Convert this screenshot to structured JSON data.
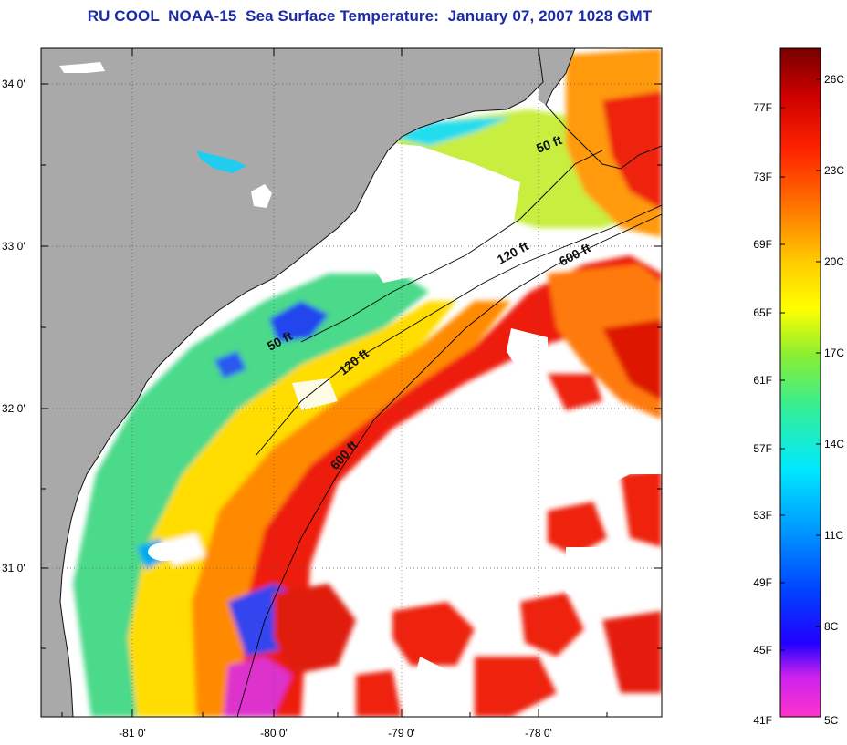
{
  "title": "RU COOL  NOAA-15  Sea Surface Temperature:  January 07, 2007 1028 GMT",
  "map": {
    "lat_ticks": [
      "34 0'",
      "33 0'",
      "32 0'",
      "31 0'"
    ],
    "lon_ticks": [
      "-81 0'",
      "-80 0'",
      "-79 0'",
      "-78 0'"
    ],
    "isobaths": [
      {
        "label": "50 ft",
        "name": "isobath-50ft-north"
      },
      {
        "label": "120 ft",
        "name": "isobath-120ft-north"
      },
      {
        "label": "600 ft",
        "name": "isobath-600ft-north"
      },
      {
        "label": "50 ft",
        "name": "isobath-50ft-south"
      },
      {
        "label": "120 ft",
        "name": "isobath-120ft-south"
      },
      {
        "label": "600 ft",
        "name": "isobath-600ft-south"
      }
    ],
    "colors": {
      "land": "#a9a9a9",
      "cloud": "#ffffff",
      "warm": "#e8140a",
      "cold": "#1030ff"
    }
  },
  "colorbar": {
    "fahrenheit": [
      "77F",
      "73F",
      "69F",
      "65F",
      "61F",
      "57F",
      "53F",
      "49F",
      "45F",
      "41F"
    ],
    "celsius": [
      "26C",
      "23C",
      "20C",
      "17C",
      "14C",
      "11C",
      "8C",
      "5C"
    ]
  }
}
